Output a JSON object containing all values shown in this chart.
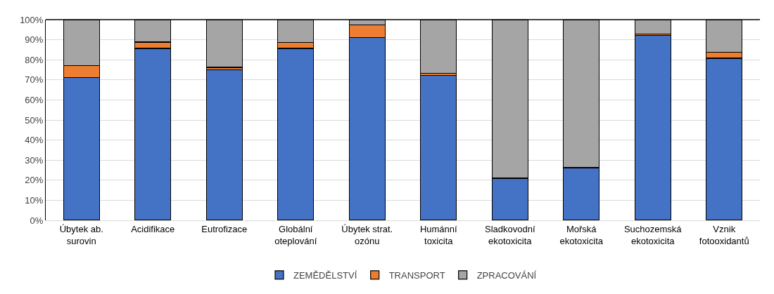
{
  "chart_data": {
    "type": "bar",
    "stacked": true,
    "categories": [
      "Úbytek ab.\nsurovin",
      "Acidifikace",
      "Eutrofizace",
      "Globální\noteplování",
      "Úbytek strat.\nozónu",
      "Humánní\ntoxicita",
      "Sladkovodní\nekotoxicita",
      "Mořská\nekotoxicita",
      "Suchozemská\nekotoxicita",
      "Vznik\nfotooxidantů"
    ],
    "series": [
      {
        "name": "ZEMĚDĚLSTVÍ",
        "color": "#4472c4",
        "values": [
          71.2,
          85.7,
          75.1,
          85.7,
          91.2,
          72.3,
          20.7,
          26.1,
          92.2,
          80.8
        ]
      },
      {
        "name": "TRANSPORT",
        "color": "#ed7d31",
        "values": [
          6.0,
          3.1,
          1.1,
          2.9,
          6.1,
          1.0,
          0.3,
          0.3,
          0.7,
          2.9
        ]
      },
      {
        "name": "ZPRACOVÁNÍ",
        "color": "#a5a5a5",
        "values": [
          22.8,
          11.2,
          23.8,
          11.4,
          2.7,
          26.7,
          79.0,
          73.6,
          7.1,
          16.3
        ]
      }
    ],
    "ylim": [
      0,
      100
    ],
    "yticks": [
      {
        "value": 0,
        "label": "0%"
      },
      {
        "value": 10,
        "label": "10%"
      },
      {
        "value": 20,
        "label": "20%"
      },
      {
        "value": 30,
        "label": "30%"
      },
      {
        "value": 40,
        "label": "40%"
      },
      {
        "value": 50,
        "label": "50%"
      },
      {
        "value": 60,
        "label": "60%"
      },
      {
        "value": 70,
        "label": "70%"
      },
      {
        "value": 80,
        "label": "80%"
      },
      {
        "value": 90,
        "label": "90%"
      },
      {
        "value": 100,
        "label": "100%"
      }
    ],
    "grid": "y",
    "legend": "bottom"
  }
}
